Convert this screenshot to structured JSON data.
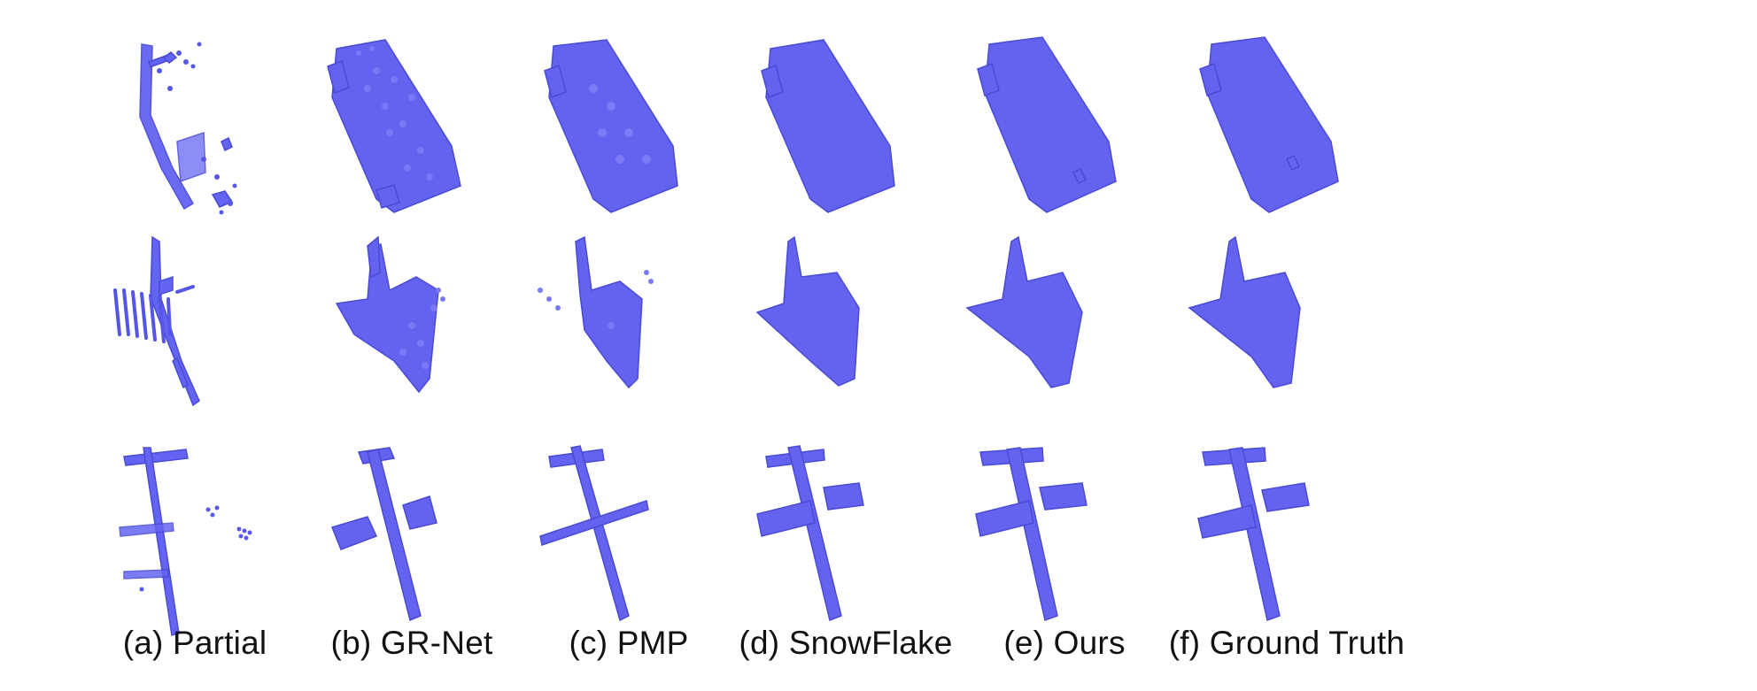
{
  "figure": {
    "point_color": "#6464f2",
    "columns": [
      {
        "label": "(a) Partial",
        "method": "partial"
      },
      {
        "label": "(b) GR-Net",
        "method": "grnet"
      },
      {
        "label": "(c) PMP",
        "method": "pmp"
      },
      {
        "label": "(d) SnowFlake",
        "method": "snowflake"
      },
      {
        "label": "(e) Ours",
        "method": "ours"
      },
      {
        "label": "(f) Ground Truth",
        "method": "ground_truth"
      }
    ],
    "rows": [
      {
        "object": "car"
      },
      {
        "object": "airplane"
      },
      {
        "object": "airplane"
      }
    ]
  }
}
